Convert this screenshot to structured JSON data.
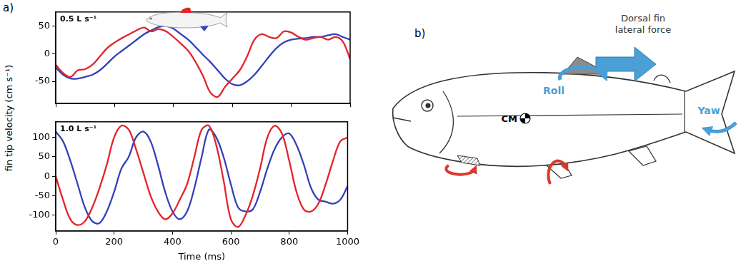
{
  "chart_data": [
    {
      "type": "line",
      "title": "0.5 L s⁻¹",
      "x": [
        0,
        25,
        50,
        75,
        100,
        125,
        150,
        175,
        200,
        225,
        250,
        275,
        300,
        325,
        350,
        375,
        400,
        425,
        450,
        475,
        500,
        525,
        550,
        575,
        600,
        625,
        650,
        675,
        700,
        725,
        750,
        775,
        800,
        825,
        850,
        875,
        900,
        925,
        950,
        975,
        1000
      ],
      "series": [
        {
          "color": "#e4232b",
          "values": [
            -20,
            -35,
            -42,
            -30,
            -28,
            -20,
            -5,
            10,
            20,
            28,
            35,
            42,
            47,
            40,
            44,
            40,
            30,
            18,
            5,
            -15,
            -40,
            -70,
            -78,
            -60,
            -45,
            -30,
            -5,
            25,
            35,
            30,
            28,
            40,
            38,
            30,
            25,
            28,
            30,
            25,
            30,
            22,
            -10
          ]
        },
        {
          "color": "#3441b8",
          "values": [
            -25,
            -38,
            -45,
            -45,
            -42,
            -38,
            -30,
            -18,
            -5,
            5,
            15,
            25,
            35,
            42,
            48,
            50,
            45,
            35,
            25,
            12,
            -2,
            -15,
            -30,
            -45,
            -55,
            -57,
            -50,
            -38,
            -22,
            -5,
            10,
            20,
            25,
            27,
            28,
            30,
            30,
            33,
            35,
            30,
            25
          ]
        }
      ],
      "xlim": [
        0,
        1000
      ],
      "xticks": [
        0,
        200,
        400,
        600,
        800,
        1000
      ],
      "ylim": [
        -90,
        75
      ],
      "yticks": [
        -50,
        0,
        50
      ],
      "grid": false,
      "tick_labels": "y"
    },
    {
      "type": "line",
      "title": "1.0 L s⁻¹",
      "xlabel": "Time (ms)",
      "x": [
        0,
        25,
        50,
        75,
        100,
        125,
        150,
        175,
        200,
        225,
        250,
        275,
        300,
        325,
        350,
        375,
        400,
        425,
        450,
        475,
        500,
        525,
        550,
        575,
        600,
        625,
        650,
        675,
        700,
        725,
        750,
        775,
        800,
        825,
        850,
        875,
        900,
        925,
        950,
        975,
        1000
      ],
      "series": [
        {
          "color": "#e4232b",
          "values": [
            0,
            -60,
            -110,
            -125,
            -115,
            -80,
            -30,
            30,
            100,
            130,
            120,
            70,
            10,
            -50,
            -90,
            -110,
            -95,
            -60,
            -20,
            50,
            120,
            130,
            80,
            -10,
            -110,
            -130,
            -100,
            -50,
            20,
            100,
            130,
            110,
            40,
            -40,
            -85,
            -90,
            -70,
            -20,
            40,
            90,
            100
          ]
        },
        {
          "color": "#3441b8",
          "values": [
            115,
            90,
            40,
            -20,
            -80,
            -115,
            -120,
            -90,
            -40,
            20,
            50,
            100,
            115,
            90,
            30,
            -40,
            -90,
            -110,
            -90,
            -30,
            50,
            120,
            100,
            50,
            -20,
            -80,
            -90,
            -85,
            -40,
            20,
            70,
            100,
            110,
            80,
            30,
            -30,
            -60,
            -65,
            -70,
            -60,
            -25
          ]
        }
      ],
      "xlim": [
        0,
        1000
      ],
      "xticks": [
        0,
        200,
        400,
        600,
        800,
        1000
      ],
      "ylim": [
        -140,
        140
      ],
      "yticks": [
        -100,
        -50,
        0,
        50,
        100
      ],
      "grid": false,
      "tick_labels": true
    }
  ],
  "panel_a": {
    "label": "a)",
    "ylabel": "fin tip velocity (cm s⁻¹)"
  },
  "panel_b": {
    "label": "b)",
    "force": "Dorsal fin lateral force",
    "roll": "Roll",
    "yaw": "Yaw",
    "center_of_mass": "CM"
  }
}
